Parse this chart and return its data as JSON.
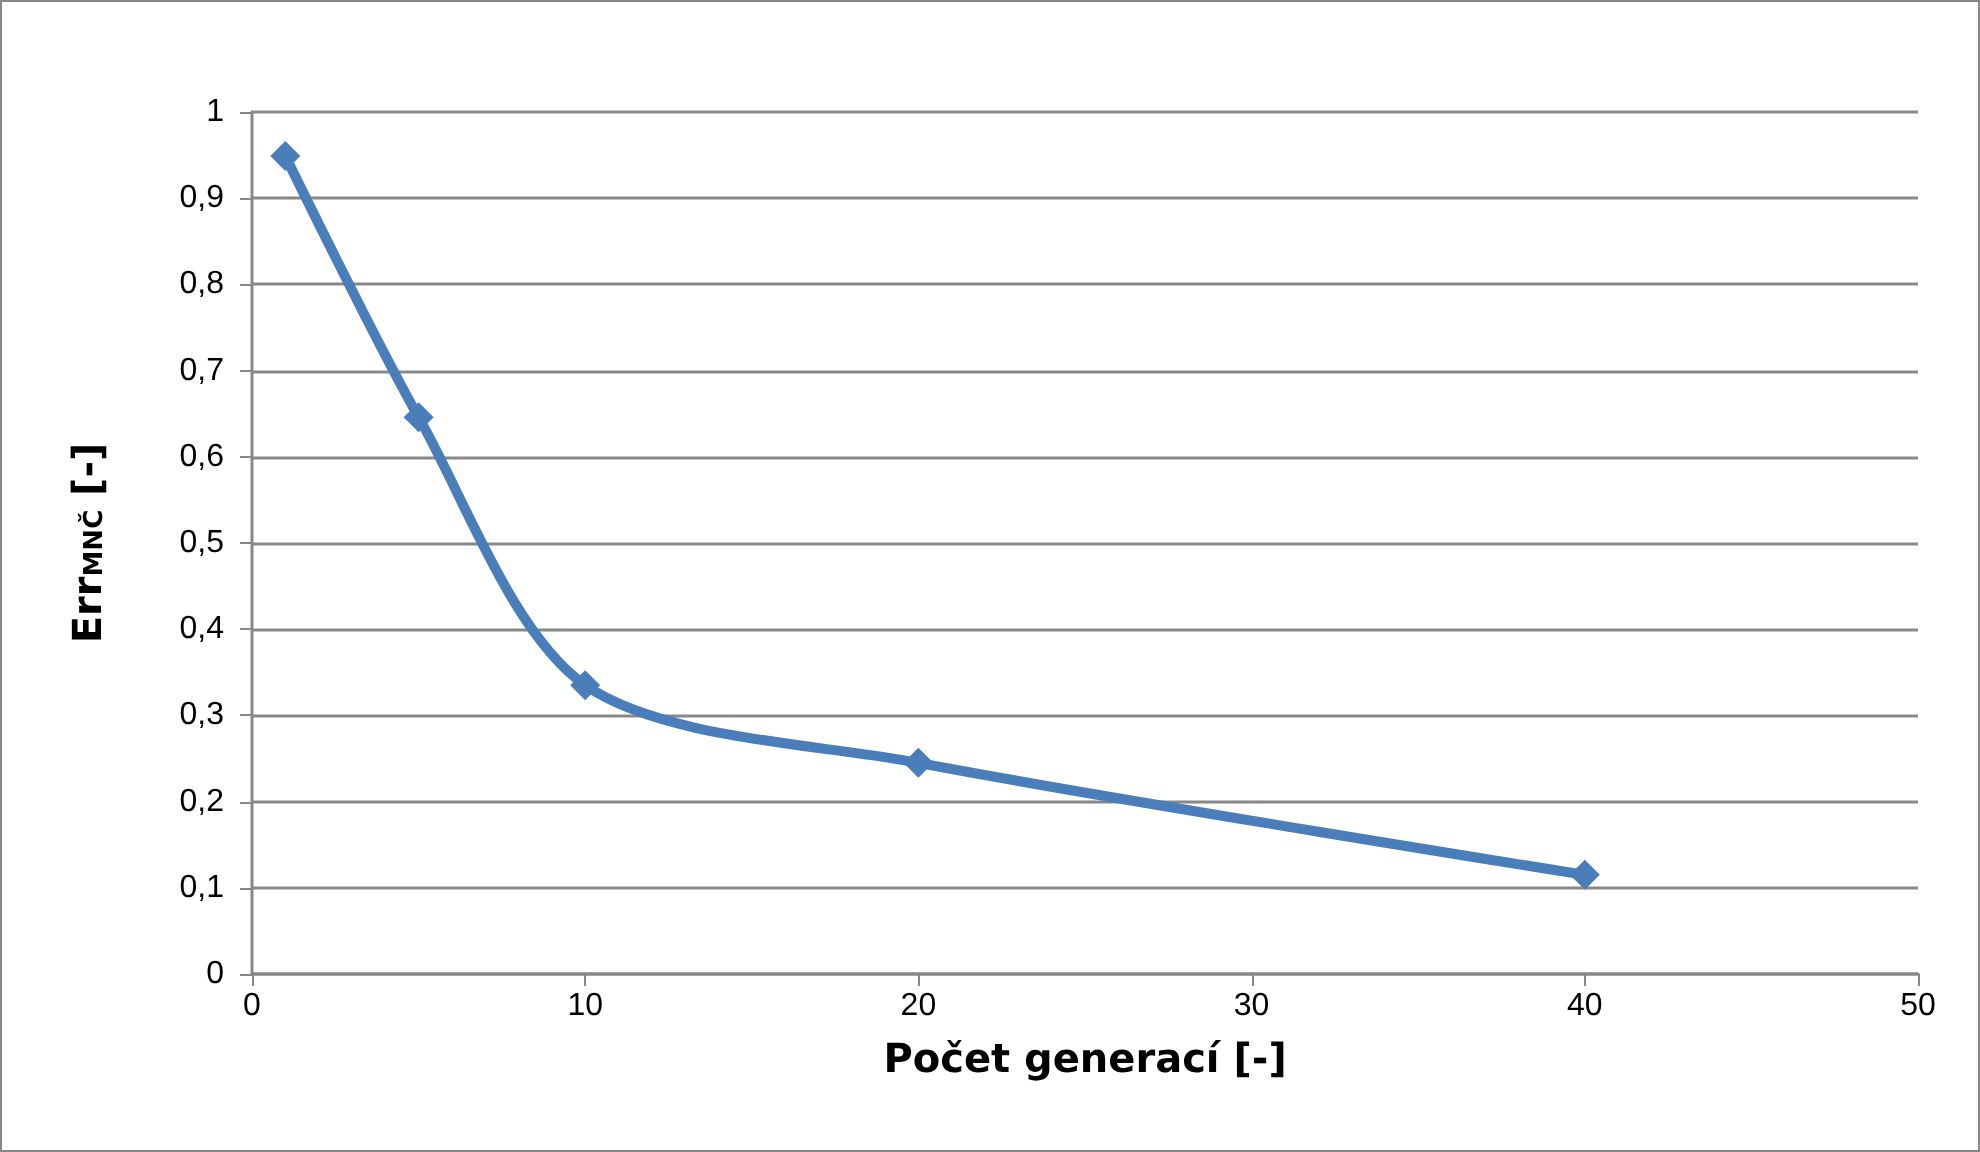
{
  "chart_data": {
    "type": "line",
    "xlabel": "Počet generací [-]",
    "ylabel": "Err$_{MNČ}$ [-]",
    "x": [
      1,
      5,
      10,
      20,
      40
    ],
    "series": [
      {
        "color": "#4a7ebb",
        "values": [
          0.949,
          0.646,
          0.335,
          0.245,
          0.115
        ]
      }
    ],
    "xlim": [
      0,
      50
    ],
    "xticks": [
      0,
      10,
      20,
      30,
      40,
      50
    ],
    "ylim": [
      0,
      1
    ],
    "yticks": [
      0,
      {
        "value": 0.1,
        "label": "0,1"
      },
      {
        "value": 0.2,
        "label": "0,2"
      },
      {
        "value": 0.3,
        "label": "0,3"
      },
      {
        "value": 0.4,
        "label": "0,4"
      },
      {
        "value": 0.5,
        "label": "0,5"
      },
      {
        "value": 0.6,
        "label": "0,6"
      },
      {
        "value": 0.7,
        "label": "0,7"
      },
      {
        "value": 0.8,
        "label": "0,8"
      },
      {
        "value": 0.9,
        "label": "0,9"
      },
      1
    ],
    "grid": "y",
    "marker": "diamond",
    "line_style": "solid"
  }
}
